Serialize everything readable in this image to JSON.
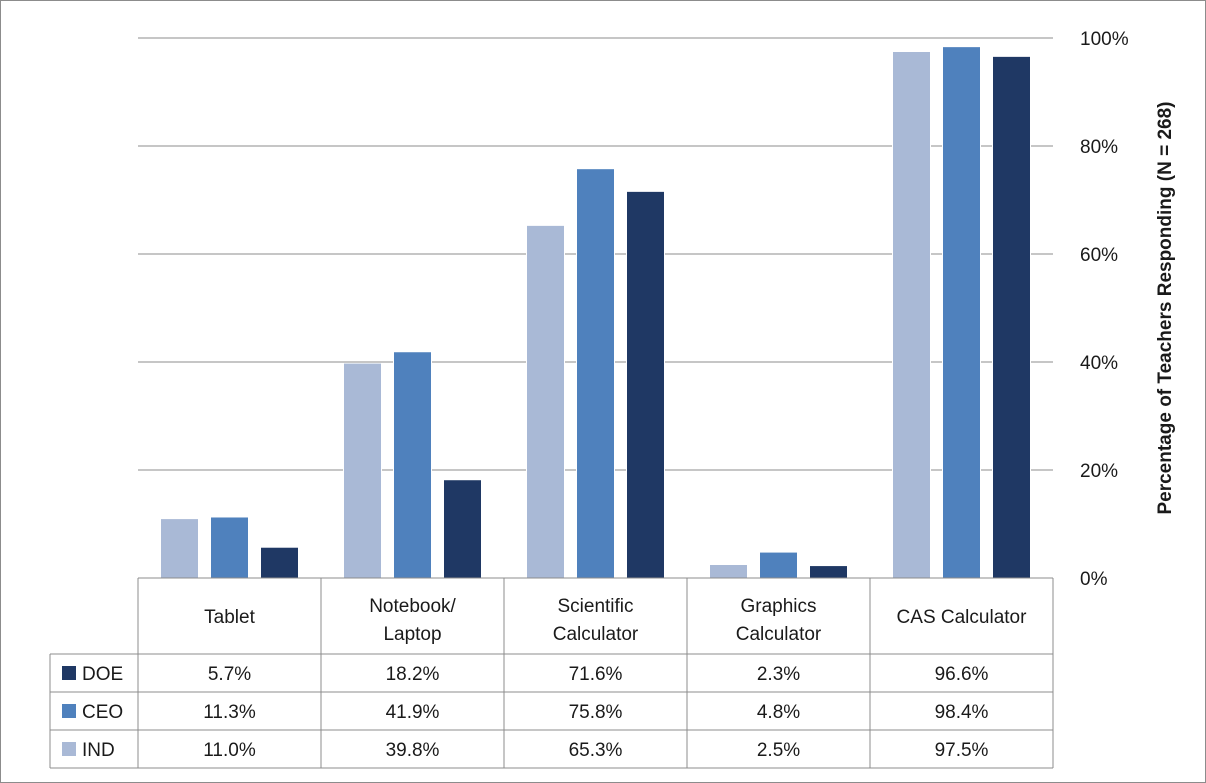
{
  "chart_data": {
    "type": "bar",
    "categories": [
      "Tablet",
      "Notebook/\nLaptop",
      "Scientific\nCalculator",
      "Graphics\nCalculator",
      "CAS Calculator"
    ],
    "series": [
      {
        "name": "IND",
        "color": "#a9b9d6",
        "values": [
          11.0,
          39.8,
          65.3,
          2.5,
          97.5
        ],
        "labels": [
          "11.0%",
          "39.8%",
          "65.3%",
          "2.5%",
          "97.5%"
        ]
      },
      {
        "name": "CEO",
        "color": "#4f81bd",
        "values": [
          11.3,
          41.9,
          75.8,
          4.8,
          98.4
        ],
        "labels": [
          "11.3%",
          "41.9%",
          "75.8%",
          "4.8%",
          "98.4%"
        ]
      },
      {
        "name": "DOE",
        "color": "#1f3864",
        "values": [
          5.7,
          18.2,
          71.6,
          2.3,
          96.6
        ],
        "labels": [
          "5.7%",
          "18.2%",
          "71.6%",
          "2.3%",
          "96.6%"
        ]
      }
    ],
    "table_order": [
      "DOE",
      "CEO",
      "IND"
    ],
    "ylabel": "Percentage of Teachers Responding (N = 268)",
    "ylim": [
      0,
      100
    ],
    "yticks": [
      "0%",
      "20%",
      "40%",
      "60%",
      "80%",
      "100%"
    ],
    "y_axis_side": "right",
    "grid": true,
    "legend": "data-table"
  }
}
